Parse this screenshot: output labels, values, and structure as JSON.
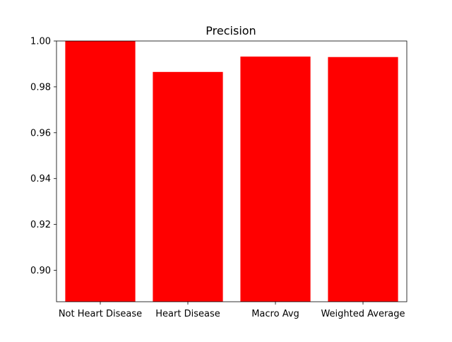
{
  "chart_data": {
    "type": "bar",
    "title": "Precision",
    "xlabel": "",
    "ylabel": "",
    "categories": [
      "Not Heart Disease",
      "Heart Disease",
      "Macro Avg",
      "Weighted Average"
    ],
    "values": [
      1.0,
      0.9865,
      0.9932,
      0.993
    ],
    "ylim": [
      0.8863,
      1.0
    ],
    "yticks": [
      0.9,
      0.92,
      0.94,
      0.96,
      0.98,
      1.0
    ],
    "ytick_labels": [
      "0.90",
      "0.92",
      "0.94",
      "0.96",
      "0.98",
      "1.00"
    ],
    "bar_color": "#ff0000",
    "grid": false,
    "legend": "none"
  }
}
